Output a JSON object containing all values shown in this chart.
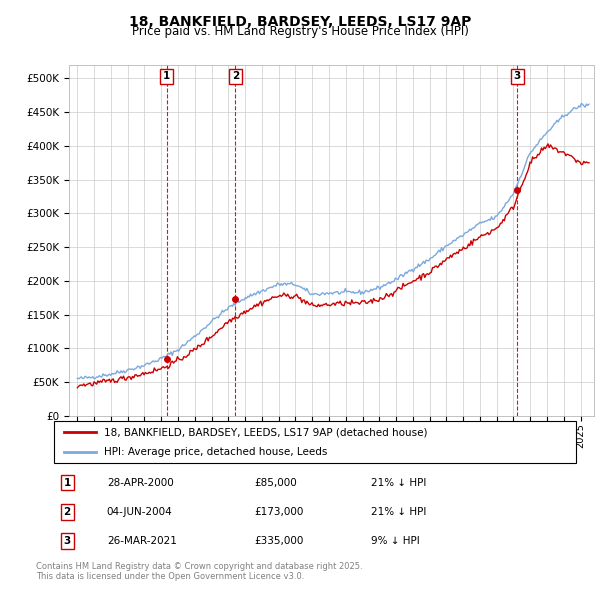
{
  "title1": "18, BANKFIELD, BARDSEY, LEEDS, LS17 9AP",
  "title2": "Price paid vs. HM Land Registry's House Price Index (HPI)",
  "ylim": [
    0,
    520000
  ],
  "yticks": [
    0,
    50000,
    100000,
    150000,
    200000,
    250000,
    300000,
    350000,
    400000,
    450000,
    500000
  ],
  "ytick_labels": [
    "£0",
    "£50K",
    "£100K",
    "£150K",
    "£200K",
    "£250K",
    "£300K",
    "£350K",
    "£400K",
    "£450K",
    "£500K"
  ],
  "xlim_start": 1994.5,
  "xlim_end": 2025.8,
  "sales": [
    {
      "date_num": 2000.32,
      "price": 85000,
      "label": "1",
      "date_str": "28-APR-2000",
      "pct": "21% ↓ HPI"
    },
    {
      "date_num": 2004.42,
      "price": 173000,
      "label": "2",
      "date_str": "04-JUN-2004",
      "pct": "21% ↓ HPI"
    },
    {
      "date_num": 2021.23,
      "price": 335000,
      "label": "3",
      "date_str": "26-MAR-2021",
      "pct": "9% ↓ HPI"
    }
  ],
  "legend_line1": "18, BANKFIELD, BARDSEY, LEEDS, LS17 9AP (detached house)",
  "legend_line2": "HPI: Average price, detached house, Leeds",
  "footnote": "Contains HM Land Registry data © Crown copyright and database right 2025.\nThis data is licensed under the Open Government Licence v3.0.",
  "red_color": "#cc0000",
  "blue_color": "#7aaadd",
  "grid_color": "#cccccc",
  "hpi_base_years": [
    1995,
    1996,
    1997,
    1998,
    1999,
    2000,
    2001,
    2002,
    2003,
    2004,
    2005,
    2006,
    2007,
    2008,
    2009,
    2010,
    2011,
    2012,
    2013,
    2014,
    2015,
    2016,
    2017,
    2018,
    2019,
    2020,
    2021,
    2022,
    2023,
    2024,
    2025
  ],
  "hpi_base_vals": [
    55000,
    58000,
    62000,
    68000,
    75000,
    85000,
    98000,
    118000,
    140000,
    160000,
    175000,
    185000,
    195000,
    195000,
    180000,
    182000,
    183000,
    183000,
    190000,
    202000,
    218000,
    232000,
    252000,
    268000,
    285000,
    295000,
    330000,
    390000,
    420000,
    445000,
    460000
  ],
  "red_base_years": [
    1995,
    1996,
    1997,
    1998,
    1999,
    2000,
    2001,
    2002,
    2003,
    2004,
    2005,
    2006,
    2007,
    2008,
    2009,
    2010,
    2011,
    2012,
    2013,
    2014,
    2015,
    2016,
    2017,
    2018,
    2019,
    2020,
    2021,
    2022,
    2023,
    2024,
    2025
  ],
  "red_base_vals": [
    45000,
    48000,
    52000,
    57000,
    63000,
    70000,
    82000,
    98000,
    118000,
    140000,
    155000,
    168000,
    178000,
    178000,
    163000,
    165000,
    167000,
    167000,
    173000,
    185000,
    200000,
    213000,
    232000,
    248000,
    265000,
    278000,
    310000,
    375000,
    400000,
    390000,
    375000
  ],
  "noise_seed": 42,
  "hpi_noise_std": 1500,
  "red_noise_std": 2000
}
